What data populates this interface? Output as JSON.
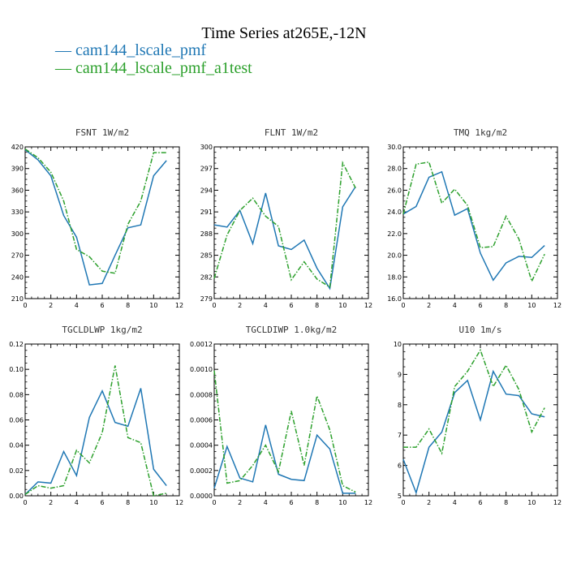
{
  "title": "Time Series at265E,-12N",
  "legend": [
    {
      "label": "— cam144_lscale_pmf",
      "color": "#1f77b4"
    },
    {
      "label": "— cam144_lscale_pmf_a1test",
      "color": "#2ca02c"
    }
  ],
  "colors": {
    "series1": "#1f77b4",
    "series2": "#2ca02c"
  },
  "chart_data": [
    {
      "type": "line",
      "title": "FSNT   1W/m2",
      "xlim": [
        0,
        12
      ],
      "ylim": [
        210,
        420
      ],
      "xticks": [
        "0",
        "2",
        "4",
        "6",
        "8",
        "10",
        "12"
      ],
      "yticks": [
        "210",
        "240",
        "270",
        "300",
        "330",
        "360",
        "390",
        "420"
      ],
      "x": [
        0,
        1,
        2,
        3,
        4,
        5,
        6,
        7,
        8,
        9,
        10,
        11
      ],
      "series": [
        {
          "values": [
            416,
            402,
            380,
            325,
            295,
            229,
            231,
            270,
            308,
            312,
            380,
            401
          ]
        },
        {
          "values": [
            417,
            405,
            385,
            345,
            278,
            268,
            248,
            245,
            313,
            345,
            412,
            412
          ],
          "dashed": true
        }
      ]
    },
    {
      "type": "line",
      "title": "FLNT   1W/m2",
      "xlim": [
        0,
        12
      ],
      "ylim": [
        279,
        300
      ],
      "xticks": [
        "0",
        "2",
        "4",
        "6",
        "8",
        "10",
        "12"
      ],
      "yticks": [
        "279",
        "282",
        "285",
        "288",
        "291",
        "294",
        "297",
        "300"
      ],
      "x": [
        0,
        1,
        2,
        3,
        4,
        5,
        6,
        7,
        8,
        9,
        10,
        11
      ],
      "series": [
        {
          "values": [
            289.2,
            288.9,
            291.2,
            286.6,
            293.6,
            286.3,
            285.8,
            287.1,
            283.2,
            280.4,
            291.7,
            294.5
          ]
        },
        {
          "values": [
            281.8,
            287.8,
            291.2,
            292.9,
            290.4,
            289.0,
            281.6,
            284.1,
            281.7,
            280.6,
            297.8,
            294.3
          ],
          "dashed": true
        }
      ]
    },
    {
      "type": "line",
      "title": "TMQ   1kg/m2",
      "xlim": [
        0,
        12
      ],
      "ylim": [
        16.0,
        30.0
      ],
      "xticks": [
        "0",
        "2",
        "4",
        "6",
        "8",
        "10",
        "12"
      ],
      "yticks": [
        "16.0",
        "18.0",
        "20.0",
        "22.0",
        "24.0",
        "26.0",
        "28.0",
        "30.0"
      ],
      "x": [
        0,
        1,
        2,
        3,
        4,
        5,
        6,
        7,
        8,
        9,
        10,
        11
      ],
      "series": [
        {
          "values": [
            23.8,
            24.5,
            27.2,
            27.7,
            23.7,
            24.3,
            20.2,
            17.7,
            19.3,
            19.9,
            19.8,
            20.9
          ]
        },
        {
          "values": [
            23.8,
            28.4,
            28.6,
            24.8,
            26.1,
            24.6,
            20.7,
            20.8,
            23.6,
            21.5,
            17.6,
            20.1
          ],
          "dashed": true
        }
      ]
    },
    {
      "type": "line",
      "title": "TGCLDLWP   1kg/m2",
      "xlim": [
        0,
        12
      ],
      "ylim": [
        0.0,
        0.12
      ],
      "xticks": [
        "0",
        "2",
        "4",
        "6",
        "8",
        "10",
        "12"
      ],
      "yticks": [
        "0.00",
        "0.02",
        "0.04",
        "0.06",
        "0.08",
        "0.10",
        "0.12"
      ],
      "x": [
        0,
        1,
        2,
        3,
        4,
        5,
        6,
        7,
        8,
        9,
        10,
        11
      ],
      "series": [
        {
          "values": [
            0.001,
            0.011,
            0.01,
            0.035,
            0.016,
            0.062,
            0.083,
            0.058,
            0.055,
            0.085,
            0.021,
            0.008
          ]
        },
        {
          "values": [
            0.001,
            0.008,
            0.006,
            0.008,
            0.036,
            0.026,
            0.05,
            0.103,
            0.046,
            0.042,
            0.0,
            0.002
          ],
          "dashed": true
        }
      ]
    },
    {
      "type": "line",
      "title": "TGCLDIWP   1.0kg/m2",
      "xlim": [
        0,
        12
      ],
      "ylim": [
        0.0,
        0.0012
      ],
      "xticks": [
        "0",
        "2",
        "4",
        "6",
        "8",
        "10",
        "12"
      ],
      "yticks": [
        "0.0000",
        "0.0002",
        "0.0004",
        "0.0006",
        "0.0008",
        "0.0010",
        "0.0012"
      ],
      "x": [
        0,
        1,
        2,
        3,
        4,
        5,
        6,
        7,
        8,
        9,
        10,
        11
      ],
      "series": [
        {
          "values": [
            6e-05,
            0.00039,
            0.00014,
            0.00011,
            0.00056,
            0.00017,
            0.00013,
            0.00012,
            0.00048,
            0.00037,
            2e-05,
            2e-05
          ]
        },
        {
          "values": [
            0.00099,
            0.0001,
            0.00012,
            0.00024,
            0.0004,
            0.00019,
            0.00067,
            0.00024,
            0.00079,
            0.00052,
            8e-05,
            3e-05
          ],
          "dashed": true
        }
      ]
    },
    {
      "type": "line",
      "title": "U10   1m/s",
      "xlim": [
        0,
        12
      ],
      "ylim": [
        5,
        10
      ],
      "xticks": [
        "0",
        "2",
        "4",
        "6",
        "8",
        "10",
        "12"
      ],
      "yticks": [
        "5",
        "6",
        "7",
        "8",
        "9",
        "10"
      ],
      "x": [
        0,
        1,
        2,
        3,
        4,
        5,
        6,
        7,
        8,
        9,
        10,
        11
      ],
      "series": [
        {
          "values": [
            6.2,
            5.1,
            6.6,
            7.1,
            8.4,
            8.8,
            7.5,
            9.1,
            8.35,
            8.3,
            7.7,
            7.6
          ]
        },
        {
          "values": [
            6.6,
            6.6,
            7.2,
            6.4,
            8.6,
            9.1,
            9.8,
            8.6,
            9.3,
            8.5,
            7.1,
            7.9
          ],
          "dashed": true
        }
      ]
    }
  ]
}
